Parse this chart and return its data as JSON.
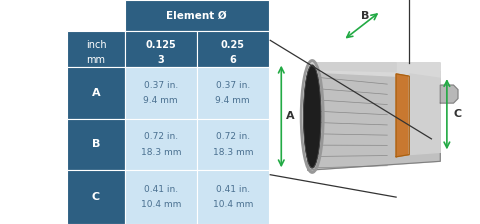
{
  "element_header": "Element Ø",
  "col1_header_inch": "inch",
  "col1_header_mm": "mm",
  "col2_header_inch": "0.125",
  "col2_header_mm": "3",
  "col3_header_inch": "0.25",
  "col3_header_mm": "6",
  "rows": [
    {
      "label": "A",
      "v1_inch": "0.37 in.",
      "v1_mm": "9.4 mm",
      "v2_inch": "0.37 in.",
      "v2_mm": "9.4 mm"
    },
    {
      "label": "B",
      "v1_inch": "0.72 in.",
      "v1_mm": "18.3 mm",
      "v2_inch": "0.72 in.",
      "v2_mm": "18.3 mm"
    },
    {
      "label": "C",
      "v1_inch": "0.41 in.",
      "v1_mm": "10.4 mm",
      "v2_inch": "0.41 in.",
      "v2_mm": "10.4 mm"
    }
  ],
  "dark_blue": "#2d5f82",
  "light_blue": "#cde4f3",
  "text_dark": "#4a7090",
  "text_light": "#ffffff",
  "white": "#ffffff",
  "figsize": [
    4.8,
    2.24
  ],
  "dpi": 100
}
